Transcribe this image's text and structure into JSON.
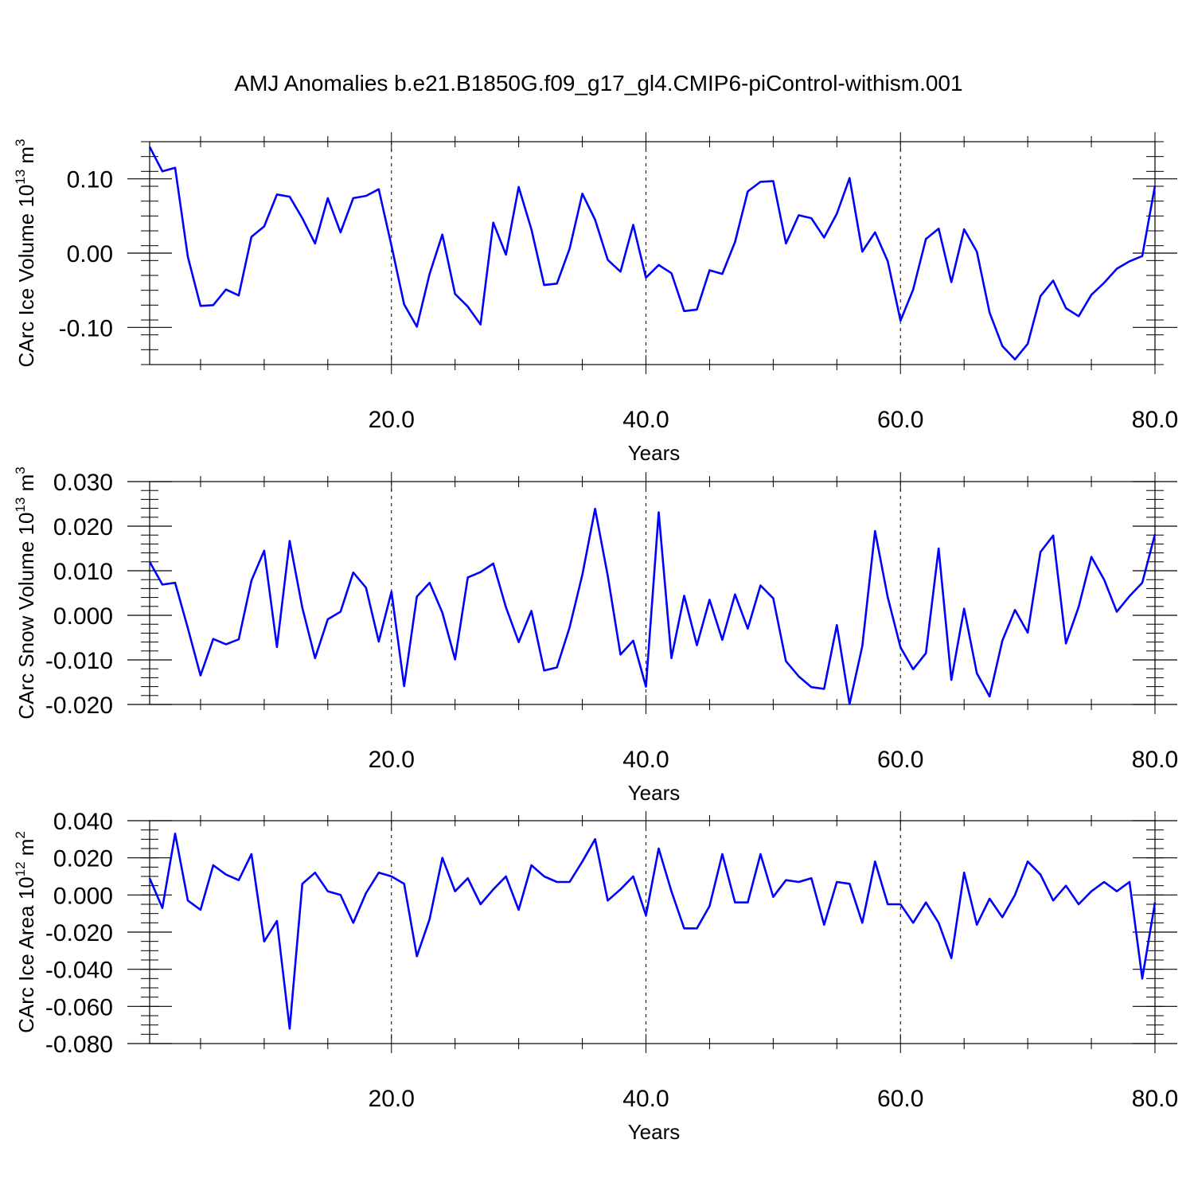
{
  "title": "AMJ Anomalies b.e21.B1850G.f09_g17_gl4.CMIP6-piControl-withism.001",
  "series_color": "#0000ff",
  "chart_data": [
    {
      "type": "line",
      "ylabel": {
        "text": "CArc Ice Volume 10",
        "exp": "13",
        "unit": " m",
        "unit_exp": "3"
      },
      "xlabel": "Years",
      "xlim": [
        1,
        80
      ],
      "ylim": [
        -0.15,
        0.15
      ],
      "xticks": [
        20,
        40,
        60,
        80
      ],
      "xtick_labels": [
        "20.0",
        "40.0",
        "60.0",
        "80.0"
      ],
      "yticks": [
        -0.1,
        0.0,
        0.1
      ],
      "ytick_labels": [
        "-0.10",
        "0.00",
        "0.10"
      ],
      "y_minor_step": 0.02,
      "grid": "dashed vertical at x ticks",
      "x": [
        1,
        2,
        3,
        4,
        5,
        6,
        7,
        8,
        9,
        10,
        11,
        12,
        13,
        14,
        15,
        16,
        17,
        18,
        19,
        20,
        21,
        22,
        23,
        24,
        25,
        26,
        27,
        28,
        29,
        30,
        31,
        32,
        33,
        34,
        35,
        36,
        37,
        38,
        39,
        40,
        41,
        42,
        43,
        44,
        45,
        46,
        47,
        48,
        49,
        50,
        51,
        52,
        53,
        54,
        55,
        56,
        57,
        58,
        59,
        60,
        61,
        62,
        63,
        64,
        65,
        66,
        67,
        68,
        69,
        70,
        71,
        72,
        73,
        74,
        75,
        76,
        77,
        78,
        79,
        80
      ],
      "values": [
        0.143,
        0.11,
        0.115,
        -0.005,
        -0.071,
        -0.07,
        -0.049,
        -0.057,
        0.022,
        0.036,
        0.079,
        0.076,
        0.047,
        0.013,
        0.074,
        0.028,
        0.074,
        0.077,
        0.086,
        0.01,
        -0.069,
        -0.099,
        -0.028,
        0.025,
        -0.055,
        -0.072,
        -0.096,
        0.041,
        -0.002,
        0.089,
        0.032,
        -0.043,
        -0.041,
        0.006,
        0.08,
        0.045,
        -0.009,
        -0.025,
        0.038,
        -0.033,
        -0.016,
        -0.027,
        -0.078,
        -0.076,
        -0.023,
        -0.028,
        0.015,
        0.083,
        0.096,
        0.097,
        0.013,
        0.051,
        0.047,
        0.021,
        0.053,
        0.101,
        0.002,
        0.028,
        -0.011,
        -0.091,
        -0.049,
        0.019,
        0.033,
        -0.039,
        0.032,
        0.002,
        -0.08,
        -0.125,
        -0.143,
        -0.122,
        -0.058,
        -0.037,
        -0.074,
        -0.085,
        -0.056,
        -0.04,
        -0.021,
        -0.011,
        -0.004,
        0.091
      ]
    },
    {
      "type": "line",
      "ylabel": {
        "text": "CArc Snow Volume 10",
        "exp": "13",
        "unit": " m",
        "unit_exp": "3"
      },
      "xlabel": "Years",
      "xlim": [
        1,
        80
      ],
      "ylim": [
        -0.02,
        0.03
      ],
      "xticks": [
        20,
        40,
        60,
        80
      ],
      "xtick_labels": [
        "20.0",
        "40.0",
        "60.0",
        "80.0"
      ],
      "yticks": [
        -0.02,
        -0.01,
        0.0,
        0.01,
        0.02,
        0.03
      ],
      "ytick_labels": [
        "-0.020",
        "-0.010",
        "0.000",
        "0.010",
        "0.020",
        "0.030"
      ],
      "y_minor_step": 0.002,
      "grid": "dashed vertical at x ticks",
      "x": [
        1,
        2,
        3,
        4,
        5,
        6,
        7,
        8,
        9,
        10,
        11,
        12,
        13,
        14,
        15,
        16,
        17,
        18,
        19,
        20,
        21,
        22,
        23,
        24,
        25,
        26,
        27,
        28,
        29,
        30,
        31,
        32,
        33,
        34,
        35,
        36,
        37,
        38,
        39,
        40,
        41,
        42,
        43,
        44,
        45,
        46,
        47,
        48,
        49,
        50,
        51,
        52,
        53,
        54,
        55,
        56,
        57,
        58,
        59,
        60,
        61,
        62,
        63,
        64,
        65,
        66,
        67,
        68,
        69,
        70,
        71,
        72,
        73,
        74,
        75,
        76,
        77,
        78,
        79,
        80
      ],
      "values": [
        0.012,
        0.0069,
        0.0073,
        -0.0029,
        -0.0135,
        -0.0053,
        -0.0065,
        -0.0054,
        0.0078,
        0.0145,
        -0.0071,
        0.0167,
        0.0017,
        -0.0096,
        -0.0009,
        0.0008,
        0.0096,
        0.0062,
        -0.0059,
        0.0053,
        -0.0159,
        0.0042,
        0.0073,
        0.0006,
        -0.0099,
        0.0085,
        0.0097,
        0.0116,
        0.0018,
        -0.006,
        0.001,
        -0.0124,
        -0.0117,
        -0.0027,
        0.0091,
        0.0239,
        0.0089,
        -0.0088,
        -0.0057,
        -0.016,
        0.0231,
        -0.0096,
        0.0044,
        -0.0067,
        0.0035,
        -0.0055,
        0.0047,
        -0.003,
        0.0067,
        0.0038,
        -0.0103,
        -0.0137,
        -0.0161,
        -0.0165,
        -0.0022,
        -0.0199,
        -0.0069,
        0.0189,
        0.004,
        -0.0072,
        -0.0121,
        -0.0085,
        0.015,
        -0.0145,
        0.0015,
        -0.013,
        -0.0182,
        -0.0057,
        0.0012,
        -0.0039,
        0.0142,
        0.0179,
        -0.0063,
        0.0019,
        0.0131,
        0.008,
        0.0008,
        0.0043,
        0.0073,
        0.0182
      ]
    },
    {
      "type": "line",
      "ylabel": {
        "text": "CArc Ice Area 10",
        "exp": "12",
        "unit": " m",
        "unit_exp": "2"
      },
      "xlabel": "Years",
      "xlim": [
        1,
        80
      ],
      "ylim": [
        -0.08,
        0.04
      ],
      "xticks": [
        20,
        40,
        60,
        80
      ],
      "xtick_labels": [
        "20.0",
        "40.0",
        "60.0",
        "80.0"
      ],
      "yticks": [
        -0.08,
        -0.06,
        -0.04,
        -0.02,
        0.0,
        0.02,
        0.04
      ],
      "ytick_labels": [
        "-0.080",
        "-0.060",
        "-0.040",
        "-0.020",
        "0.000",
        "0.020",
        "0.040"
      ],
      "y_minor_step": 0.005,
      "grid": "dashed vertical at x ticks",
      "x": [
        1,
        2,
        3,
        4,
        5,
        6,
        7,
        8,
        9,
        10,
        11,
        12,
        13,
        14,
        15,
        16,
        17,
        18,
        19,
        20,
        21,
        22,
        23,
        24,
        25,
        26,
        27,
        28,
        29,
        30,
        31,
        32,
        33,
        34,
        35,
        36,
        37,
        38,
        39,
        40,
        41,
        42,
        43,
        44,
        45,
        46,
        47,
        48,
        49,
        50,
        51,
        52,
        53,
        54,
        55,
        56,
        57,
        58,
        59,
        60,
        61,
        62,
        63,
        64,
        65,
        66,
        67,
        68,
        69,
        70,
        71,
        72,
        73,
        74,
        75,
        76,
        77,
        78,
        79,
        80
      ],
      "values": [
        0.009,
        -0.007,
        0.033,
        -0.003,
        -0.008,
        0.016,
        0.011,
        0.008,
        0.022,
        -0.025,
        -0.014,
        -0.072,
        0.006,
        0.012,
        0.002,
        0.0,
        -0.015,
        0.001,
        0.012,
        0.01,
        0.006,
        -0.033,
        -0.013,
        0.02,
        0.002,
        0.009,
        -0.005,
        0.003,
        0.01,
        -0.008,
        0.016,
        0.01,
        0.007,
        0.007,
        0.018,
        0.03,
        -0.003,
        0.003,
        0.01,
        -0.011,
        0.025,
        0.002,
        -0.018,
        -0.018,
        -0.006,
        0.022,
        -0.004,
        -0.004,
        0.022,
        -0.001,
        0.008,
        0.007,
        0.009,
        -0.016,
        0.007,
        0.006,
        -0.015,
        0.018,
        -0.005,
        -0.005,
        -0.015,
        -0.004,
        -0.015,
        -0.034,
        0.012,
        -0.016,
        -0.002,
        -0.012,
        0.0,
        0.018,
        0.011,
        -0.003,
        0.005,
        -0.005,
        0.002,
        0.007,
        0.002,
        0.007,
        -0.045,
        -0.004
      ]
    }
  ]
}
